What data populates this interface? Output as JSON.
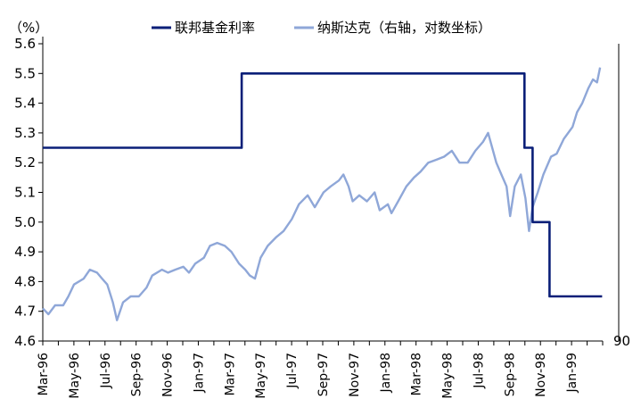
{
  "chart_data": {
    "type": "line",
    "y_unit": "（%）",
    "ylim": [
      4.6,
      5.6
    ],
    "y_ticks": [
      "5.6",
      "5.5",
      "5.4",
      "5.3",
      "5.2",
      "5.1",
      "5.0",
      "4.9",
      "4.8",
      "4.7",
      "4.6"
    ],
    "right_tick_label": "90",
    "x_tick_labels": [
      "Mar-96",
      "May-96",
      "Jul-96",
      "Sep-96",
      "Nov-96",
      "Jan-97",
      "Mar-97",
      "May-97",
      "Jul-97",
      "Sep-97",
      "Nov-97",
      "Jan-98",
      "Mar-98",
      "May-98",
      "Jul-98",
      "Sep-98",
      "Nov-98",
      "Jan-99"
    ],
    "series": [
      {
        "name": "联邦基金利率",
        "color": "#0a1f78",
        "type": "step",
        "points": [
          [
            "1996-03-01",
            5.25
          ],
          [
            "1997-03-25",
            5.25
          ],
          [
            "1997-03-25",
            5.5
          ],
          [
            "1998-09-29",
            5.5
          ],
          [
            "1998-09-29",
            5.25
          ],
          [
            "1998-10-15",
            5.25
          ],
          [
            "1998-10-15",
            5.0
          ],
          [
            "1998-11-17",
            5.0
          ],
          [
            "1998-11-17",
            4.75
          ],
          [
            "1999-02-28",
            4.75
          ]
        ]
      },
      {
        "name": "纳斯达克（右轴，对数坐标）",
        "color": "#8fa7d8",
        "type": "line",
        "points": [
          [
            "1996-03-01",
            4.71
          ],
          [
            "1996-03-12",
            4.69
          ],
          [
            "1996-03-25",
            4.72
          ],
          [
            "1996-04-10",
            4.72
          ],
          [
            "1996-04-20",
            4.75
          ],
          [
            "1996-05-01",
            4.79
          ],
          [
            "1996-05-20",
            4.81
          ],
          [
            "1996-06-01",
            4.84
          ],
          [
            "1996-06-15",
            4.83
          ],
          [
            "1996-06-25",
            4.81
          ],
          [
            "1996-07-05",
            4.79
          ],
          [
            "1996-07-16",
            4.73
          ],
          [
            "1996-07-24",
            4.67
          ],
          [
            "1996-08-05",
            4.73
          ],
          [
            "1996-08-20",
            4.75
          ],
          [
            "1996-09-05",
            4.75
          ],
          [
            "1996-09-20",
            4.78
          ],
          [
            "1996-10-01",
            4.82
          ],
          [
            "1996-10-20",
            4.84
          ],
          [
            "1996-11-01",
            4.83
          ],
          [
            "1996-11-15",
            4.84
          ],
          [
            "1996-12-01",
            4.85
          ],
          [
            "1996-12-12",
            4.83
          ],
          [
            "1996-12-24",
            4.86
          ],
          [
            "1997-01-10",
            4.88
          ],
          [
            "1997-01-22",
            4.92
          ],
          [
            "1997-02-05",
            4.93
          ],
          [
            "1997-02-20",
            4.92
          ],
          [
            "1997-03-05",
            4.9
          ],
          [
            "1997-03-20",
            4.86
          ],
          [
            "1997-04-01",
            4.84
          ],
          [
            "1997-04-10",
            4.82
          ],
          [
            "1997-04-20",
            4.81
          ],
          [
            "1997-05-01",
            4.88
          ],
          [
            "1997-05-15",
            4.92
          ],
          [
            "1997-06-01",
            4.95
          ],
          [
            "1997-06-15",
            4.97
          ],
          [
            "1997-07-01",
            5.01
          ],
          [
            "1997-07-15",
            5.06
          ],
          [
            "1997-08-01",
            5.09
          ],
          [
            "1997-08-15",
            5.05
          ],
          [
            "1997-09-01",
            5.1
          ],
          [
            "1997-09-15",
            5.12
          ],
          [
            "1997-10-01",
            5.14
          ],
          [
            "1997-10-10",
            5.16
          ],
          [
            "1997-10-20",
            5.12
          ],
          [
            "1997-10-28",
            5.07
          ],
          [
            "1997-11-10",
            5.09
          ],
          [
            "1997-11-25",
            5.07
          ],
          [
            "1997-12-10",
            5.1
          ],
          [
            "1997-12-20",
            5.04
          ],
          [
            "1998-01-05",
            5.06
          ],
          [
            "1998-01-12",
            5.03
          ],
          [
            "1998-01-25",
            5.07
          ],
          [
            "1998-02-10",
            5.12
          ],
          [
            "1998-02-25",
            5.15
          ],
          [
            "1998-03-10",
            5.17
          ],
          [
            "1998-03-25",
            5.2
          ],
          [
            "1998-04-10",
            5.21
          ],
          [
            "1998-04-25",
            5.22
          ],
          [
            "1998-05-10",
            5.24
          ],
          [
            "1998-05-25",
            5.2
          ],
          [
            "1998-06-10",
            5.2
          ],
          [
            "1998-06-25",
            5.24
          ],
          [
            "1998-07-10",
            5.27
          ],
          [
            "1998-07-20",
            5.3
          ],
          [
            "1998-07-28",
            5.25
          ],
          [
            "1998-08-05",
            5.2
          ],
          [
            "1998-08-15",
            5.16
          ],
          [
            "1998-08-25",
            5.12
          ],
          [
            "1998-09-01",
            5.02
          ],
          [
            "1998-09-10",
            5.12
          ],
          [
            "1998-09-22",
            5.16
          ],
          [
            "1998-10-01",
            5.08
          ],
          [
            "1998-10-08",
            4.97
          ],
          [
            "1998-10-15",
            5.05
          ],
          [
            "1998-10-25",
            5.1
          ],
          [
            "1998-11-05",
            5.16
          ],
          [
            "1998-11-20",
            5.22
          ],
          [
            "1998-12-01",
            5.23
          ],
          [
            "1998-12-15",
            5.28
          ],
          [
            "1999-01-01",
            5.32
          ],
          [
            "1999-01-10",
            5.37
          ],
          [
            "1999-01-20",
            5.4
          ],
          [
            "1999-02-01",
            5.45
          ],
          [
            "1999-02-10",
            5.48
          ],
          [
            "1999-02-18",
            5.47
          ],
          [
            "1999-02-24",
            5.52
          ]
        ]
      }
    ]
  }
}
